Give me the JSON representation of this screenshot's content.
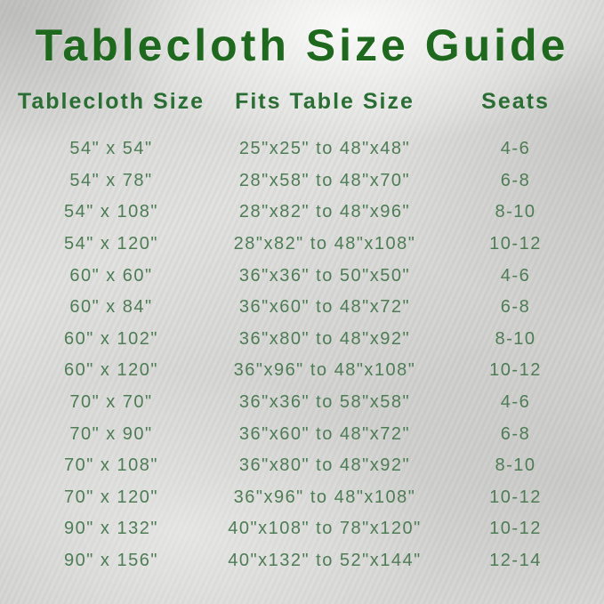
{
  "title": "Tablecloth Size Guide",
  "colors": {
    "title_green": "#1e691e",
    "header_green": "#2a6e34",
    "body_green": "#4d7c55",
    "background_silver": "#d6d6d4"
  },
  "chart_data": {
    "type": "table",
    "title": "Tablecloth Size Guide",
    "columns": [
      "Tablecloth Size",
      "Fits Table Size",
      "Seats"
    ],
    "rows": [
      [
        "54\" x 54\"",
        "25\"x25\" to 48\"x48\"",
        "4-6"
      ],
      [
        "54\" x 78\"",
        "28\"x58\" to 48\"x70\"",
        "6-8"
      ],
      [
        "54\" x 108\"",
        "28\"x82\" to 48\"x96\"",
        "8-10"
      ],
      [
        "54\" x 120\"",
        "28\"x82\" to 48\"x108\"",
        "10-12"
      ],
      [
        "60\" x 60\"",
        "36\"x36\" to 50\"x50\"",
        "4-6"
      ],
      [
        "60\" x 84\"",
        "36\"x60\" to 48\"x72\"",
        "6-8"
      ],
      [
        "60\" x 102\"",
        "36\"x80\" to 48\"x92\"",
        "8-10"
      ],
      [
        "60\" x 120\"",
        "36\"x96\" to 48\"x108\"",
        "10-12"
      ],
      [
        "70\" x 70\"",
        "36\"x36\" to 58\"x58\"",
        "4-6"
      ],
      [
        "70\" x 90\"",
        "36\"x60\" to 48\"x72\"",
        "6-8"
      ],
      [
        "70\" x 108\"",
        "36\"x80\" to 48\"x92\"",
        "8-10"
      ],
      [
        "70\" x 120\"",
        "36\"x96\" to 48\"x108\"",
        "10-12"
      ],
      [
        "90\" x 132\"",
        "40\"x108\" to 78\"x120\"",
        "10-12"
      ],
      [
        "90\" x 156\"",
        "40\"x132\" to 52\"x144\"",
        "12-14"
      ]
    ]
  }
}
